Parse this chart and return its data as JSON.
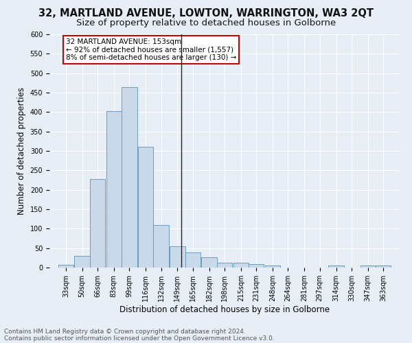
{
  "title": "32, MARTLAND AVENUE, LOWTON, WARRINGTON, WA3 2QT",
  "subtitle": "Size of property relative to detached houses in Golborne",
  "xlabel": "Distribution of detached houses by size in Golborne",
  "ylabel": "Number of detached properties",
  "footnote1": "Contains HM Land Registry data © Crown copyright and database right 2024.",
  "footnote2": "Contains public sector information licensed under the Open Government Licence v3.0.",
  "bin_labels": [
    "33sqm",
    "50sqm",
    "66sqm",
    "83sqm",
    "99sqm",
    "116sqm",
    "132sqm",
    "149sqm",
    "165sqm",
    "182sqm",
    "198sqm",
    "215sqm",
    "231sqm",
    "248sqm",
    "264sqm",
    "281sqm",
    "297sqm",
    "314sqm",
    "330sqm",
    "347sqm",
    "363sqm"
  ],
  "bin_values": [
    7,
    30,
    227,
    402,
    465,
    310,
    110,
    54,
    38,
    27,
    13,
    12,
    8,
    6,
    0,
    0,
    0,
    5,
    0,
    5,
    6
  ],
  "bin_width": 17,
  "bar_color": "#c9d9ea",
  "bar_edge_color": "#6a9cbf",
  "vline_x": 153,
  "vline_color": "#222222",
  "annotation_text": "32 MARTLAND AVENUE: 153sqm\n← 92% of detached houses are smaller (1,557)\n8% of semi-detached houses are larger (130) →",
  "annotation_box_color": "#ffffff",
  "annotation_border_color": "#cc0000",
  "ylim": [
    0,
    600
  ],
  "yticks": [
    0,
    50,
    100,
    150,
    200,
    250,
    300,
    350,
    400,
    450,
    500,
    550,
    600
  ],
  "bg_color": "#e8eef6",
  "plot_bg_color": "#e8eef6",
  "grid_color": "#ffffff",
  "title_fontsize": 10.5,
  "subtitle_fontsize": 9.5,
  "axis_label_fontsize": 8.5,
  "tick_fontsize": 7,
  "annotation_fontsize": 7.5,
  "footnote_fontsize": 6.5
}
